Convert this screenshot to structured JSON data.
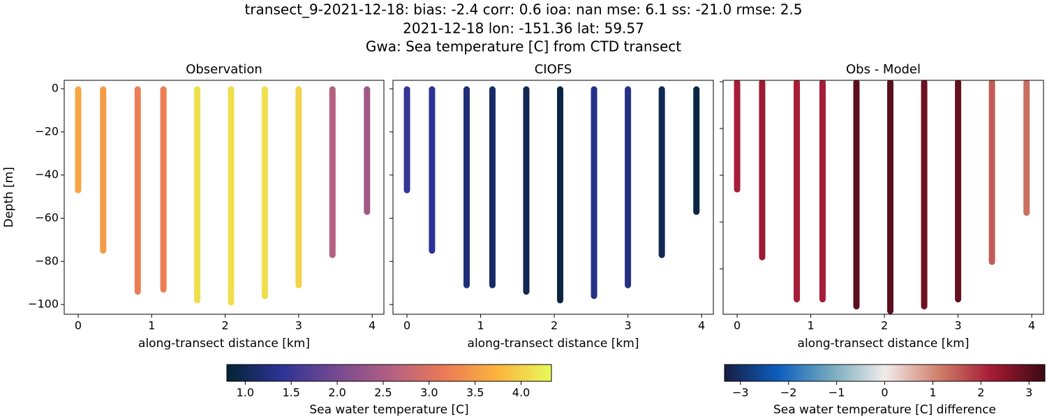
{
  "title": [
    "transect_9-2021-12-18: bias: -2.4  corr: 0.6  ioa: nan  mse: 6.1  ss: -21.0  rmse: 2.5",
    "2021-12-18 lon: -151.36 lat: 59.57",
    "Gwa: Sea temperature [C] from CTD transect"
  ],
  "chart_data": [
    {
      "type": "scatter",
      "title": "Observation",
      "xlabel": "along-transect distance [km]",
      "ylabel": "Depth [m]",
      "x": [
        0,
        0.34,
        0.81,
        1.16,
        1.62,
        2.08,
        2.54,
        3.0,
        3.46,
        3.93
      ],
      "values": [
        -47,
        -75,
        -94,
        -93,
        -98,
        -99,
        -96,
        -91,
        -77,
        -57
      ],
      "color_values": [
        3.6,
        3.5,
        3.2,
        3.2,
        4.1,
        4.1,
        4.1,
        4.0,
        2.6,
        2.4
      ],
      "clim": [
        0.8,
        4.33
      ],
      "cmap": [
        "#042333",
        "#2c3395",
        "#744992",
        "#b15f82",
        "#eb7958",
        "#fbb43d",
        "#e8fa5b"
      ],
      "xlim": [
        -0.19,
        4.16
      ],
      "ylim": [
        -104.5,
        3.9
      ],
      "xticks": [
        0,
        1,
        2,
        3,
        4
      ],
      "yticks": [
        {
          "value": 0,
          "label": "0"
        },
        {
          "value": -20,
          "label": "−20"
        },
        {
          "value": -40,
          "label": "−40"
        },
        {
          "value": -60,
          "label": "−60"
        },
        {
          "value": -80,
          "label": "−80"
        },
        {
          "value": -100,
          "label": "−100"
        }
      ],
      "show_ytick_labels": true
    },
    {
      "type": "scatter",
      "title": "CIOFS",
      "xlabel": "along-transect distance [km]",
      "x": [
        0,
        0.34,
        0.81,
        1.16,
        1.62,
        2.08,
        2.54,
        3.0,
        3.46,
        3.93
      ],
      "values": [
        -47,
        -75,
        -91,
        -91,
        -94,
        -98,
        -96,
        -91,
        -77,
        -57
      ],
      "color_values": [
        1.45,
        1.4,
        1.2,
        1.1,
        1.0,
        0.9,
        1.3,
        1.3,
        1.0,
        0.9
      ],
      "clim": [
        0.8,
        4.33
      ],
      "cmap": [
        "#042333",
        "#2c3395",
        "#744992",
        "#b15f82",
        "#eb7958",
        "#fbb43d",
        "#e8fa5b"
      ],
      "xlim": [
        -0.19,
        4.16
      ],
      "ylim": [
        -104.5,
        3.9
      ],
      "xticks": [
        0,
        1,
        2,
        3,
        4
      ],
      "yticks": [
        0,
        -20,
        -40,
        -60,
        -80,
        -100
      ],
      "show_ytick_labels": false
    },
    {
      "type": "scatter",
      "title": "Obs - Model",
      "xlabel": "along-transect distance [km]",
      "x": [
        0,
        0.34,
        0.81,
        1.16,
        1.62,
        2.08,
        2.54,
        3.0,
        3.46,
        3.93
      ],
      "values": [
        -46,
        -75,
        -93,
        -93,
        -96,
        -98,
        -96,
        -93,
        -77,
        -56
      ],
      "color_values": [
        2.2,
        2.3,
        2.2,
        2.2,
        3.0,
        3.0,
        2.8,
        2.9,
        1.5,
        1.3
      ],
      "clim": [
        -3.33,
        3.33
      ],
      "cmap": [
        "#181c43",
        "#0c5ebe",
        "#75aabe",
        "#f1eceb",
        "#d0816b",
        "#a51b36",
        "#3c0912"
      ],
      "xlim": [
        -0.19,
        4.16
      ],
      "ylim": [
        -99.4,
        0.6
      ],
      "xticks": [
        0,
        1,
        2,
        3,
        4
      ],
      "yticks": [
        0,
        -20,
        -40,
        -60,
        -80
      ],
      "show_ytick_labels": false
    }
  ],
  "colorbars": [
    {
      "label": "Sea water temperature [C]",
      "lim": [
        0.8,
        4.33
      ],
      "colors": [
        "#042333",
        "#2c3395",
        "#744992",
        "#b15f82",
        "#eb7958",
        "#fbb43d",
        "#e8fa5b"
      ],
      "ticks": [
        {
          "value": 1,
          "label": "1.0"
        },
        {
          "value": 1.5,
          "label": "1.5"
        },
        {
          "value": 2,
          "label": "2.0"
        },
        {
          "value": 2.5,
          "label": "2.5"
        },
        {
          "value": 3,
          "label": "3.0"
        },
        {
          "value": 3.5,
          "label": "3.5"
        },
        {
          "value": 4,
          "label": "4.0"
        }
      ]
    },
    {
      "label": "Sea water temperature [C] difference",
      "lim": [
        -3.33,
        3.33
      ],
      "colors": [
        "#181c43",
        "#0c5ebe",
        "#75aabe",
        "#f1eceb",
        "#d0816b",
        "#a51b36",
        "#3c0912"
      ],
      "ticks": [
        {
          "value": -3,
          "label": "−3"
        },
        {
          "value": -2,
          "label": "−2"
        },
        {
          "value": -1,
          "label": "−1"
        },
        {
          "value": 0,
          "label": "0"
        },
        {
          "value": 1,
          "label": "1"
        },
        {
          "value": 2,
          "label": "2"
        },
        {
          "value": 3,
          "label": "3"
        }
      ]
    }
  ]
}
